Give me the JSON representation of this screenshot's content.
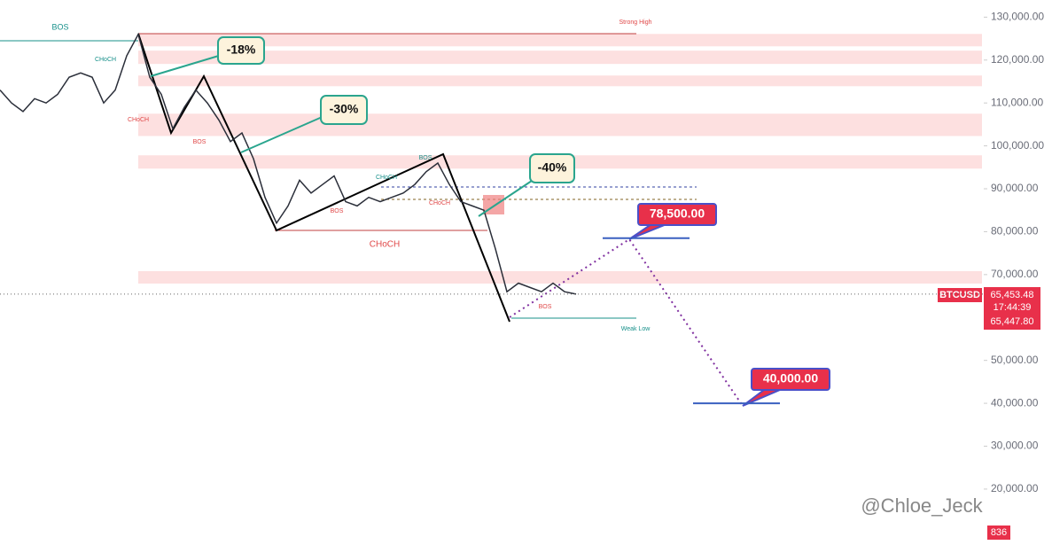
{
  "chart_data": {
    "type": "line",
    "symbol": "BTCUSD",
    "categories": [
      null,
      null,
      null,
      null,
      null,
      null,
      null,
      null,
      null,
      null,
      null,
      null,
      null,
      null,
      null,
      null,
      null,
      null,
      null,
      null,
      null,
      null,
      null,
      null,
      null,
      null,
      null,
      null,
      null,
      null,
      null,
      null,
      null,
      null,
      null,
      null,
      null,
      null,
      null,
      null,
      null,
      null,
      null,
      null,
      null,
      null,
      null,
      null,
      null,
      null,
      null
    ],
    "series": [
      {
        "color": "#2a2e39",
        "values": [
          113000,
          110000,
          108000,
          111000,
          110000,
          112000,
          116000,
          117000,
          116000,
          110000,
          113000,
          121000,
          126000,
          116000,
          112000,
          104000,
          109000,
          113000,
          110000,
          106000,
          101000,
          103000,
          97000,
          88000,
          82000,
          86000,
          92000,
          89000,
          91000,
          93000,
          87000,
          86000,
          88000,
          87000,
          88000,
          89000,
          91000,
          94000,
          96000,
          91000,
          87000,
          86000,
          85000,
          76000,
          66000,
          68000,
          67000,
          66000,
          68000,
          66000,
          65453.48
        ]
      }
    ],
    "ylim": [
      8000,
      134000
    ],
    "yticks": [
      {
        "value": 20000,
        "label": "20,000.00"
      },
      {
        "value": 30000,
        "label": "30,000.00"
      },
      {
        "value": 40000,
        "label": "40,000.00"
      },
      {
        "value": 50000,
        "label": "50,000.00"
      },
      {
        "value": 70000,
        "label": "70,000.00"
      },
      {
        "value": 80000,
        "label": "80,000.00"
      },
      {
        "value": 90000,
        "label": "90,000.00"
      },
      {
        "value": 100000,
        "label": "100,000.00"
      },
      {
        "value": 110000,
        "label": "110,000.00"
      },
      {
        "value": 120000,
        "label": "120,000.00"
      },
      {
        "value": 130000,
        "label": "130,000.00"
      }
    ],
    "zones": [
      [
        123200,
        126100
      ],
      [
        119100,
        122200
      ],
      [
        113900,
        116400
      ],
      [
        102300,
        107500
      ],
      [
        94700,
        97800
      ],
      [
        67900,
        70800
      ]
    ],
    "zone_color": "#fde0e0",
    "last_price": {
      "value": 65453.48,
      "label": "65,453.48"
    },
    "countdown": "17:44:39",
    "bid": {
      "value": 65447.8,
      "label": "65,447.80"
    },
    "targets": [
      {
        "value": 78500,
        "label": "78,500.00"
      },
      {
        "value": 40000,
        "label": "40,000.00"
      }
    ],
    "volume": 836,
    "labels": [
      "BOS",
      "CHoCH",
      "CHoCH",
      "BOS",
      "BOS",
      "BOS",
      "CHoCH",
      "CHoCH",
      "BOS",
      "Strong High",
      "Weak Low",
      "CHoCH"
    ],
    "callouts": [
      "-18%",
      "-30%",
      "-40%"
    ],
    "watermark": "@Chloe_Jeck"
  }
}
